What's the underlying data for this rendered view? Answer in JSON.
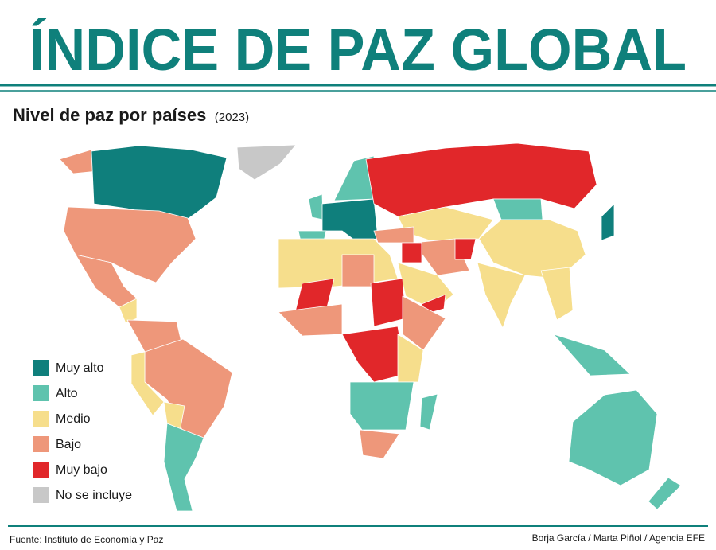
{
  "header": {
    "title": "ÍNDICE DE PAZ GLOBAL"
  },
  "subtitle": {
    "text": "Nivel de paz por países",
    "year": "(2023)"
  },
  "legend": {
    "items": [
      {
        "label": "Muy alto",
        "color": "#0f7f7c"
      },
      {
        "label": "Alto",
        "color": "#5fc3ae"
      },
      {
        "label": "Medio",
        "color": "#f6de8c"
      },
      {
        "label": "Bajo",
        "color": "#ee977a"
      },
      {
        "label": "Muy bajo",
        "color": "#e1272a"
      },
      {
        "label": "No se incluye",
        "color": "#c8c8c8"
      }
    ]
  },
  "footer": {
    "source": "Fuente: Instituto de Economía y Paz",
    "credits": "Borja García / Marta Piñol / Agencia EFE"
  }
}
